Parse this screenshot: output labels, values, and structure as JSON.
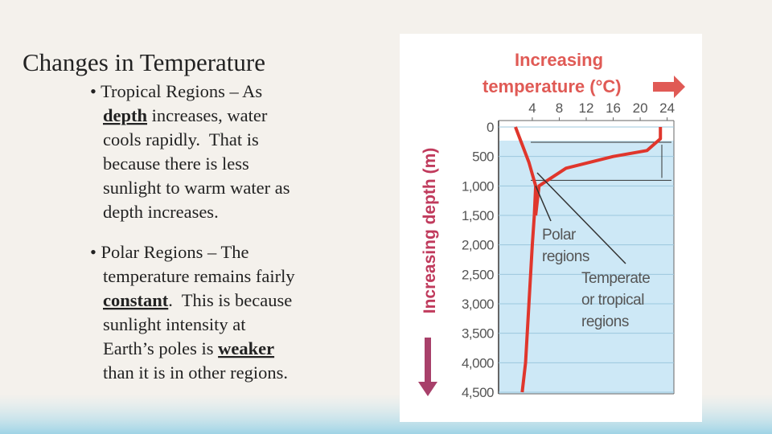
{
  "title": "Changes in Temperature",
  "bullets": [
    {
      "lines": [
        [
          {
            "text": "• Tropical Regions – As"
          }
        ],
        [
          {
            "text": "depth",
            "underline": true,
            "bold": true
          },
          {
            "text": " increases, water"
          }
        ],
        [
          {
            "text": "cools rapidly.  That is"
          }
        ],
        [
          {
            "text": "because there is less"
          }
        ],
        [
          {
            "text": "sunlight to warm water as"
          }
        ],
        [
          {
            "text": "depth increases."
          }
        ]
      ]
    },
    {
      "lines": [
        [
          {
            "text": "• Polar Regions – The"
          }
        ],
        [
          {
            "text": "temperature remains fairly"
          }
        ],
        [
          {
            "text": "constant",
            "underline": true,
            "bold": true
          },
          {
            "text": ".  This is because"
          }
        ],
        [
          {
            "text": "sunlight intensity at"
          }
        ],
        [
          {
            "text": "Earth’s poles is "
          },
          {
            "text": "weaker",
            "underline": true,
            "bold": true
          }
        ],
        [
          {
            "text": "than it is in other regions."
          }
        ]
      ]
    }
  ],
  "figure": {
    "type": "line",
    "x_label": [
      "Increasing",
      "temperature (°C)"
    ],
    "y_label": "Increasing depth (m)",
    "xlim": [
      -1,
      25
    ],
    "xticks": [
      4,
      8,
      12,
      16,
      20,
      24
    ],
    "ylim": [
      0,
      4500
    ],
    "yticks": [
      0,
      500,
      {
        "value": 1000,
        "label": "1,000"
      },
      {
        "value": 1500,
        "label": "1,500"
      },
      {
        "value": 2000,
        "label": "2,000"
      },
      {
        "value": 2500,
        "label": "2,500"
      },
      {
        "value": 3000,
        "label": "3,000"
      },
      {
        "value": 3500,
        "label": "3,500"
      },
      {
        "value": 4000,
        "label": "4,000"
      },
      {
        "value": 4500,
        "label": "4,500"
      }
    ],
    "color": "#e0362c",
    "series": [
      {
        "name": [
          "Polar",
          "regions"
        ],
        "x": [
          1.5,
          3.5,
          4.5,
          4.3,
          4,
          3.5,
          3,
          2.5
        ],
        "values": [
          0,
          600,
          1000,
          1500,
          2000,
          3000,
          4000,
          4500
        ]
      },
      {
        "name": [
          "Temperate",
          "or tropical",
          "regions"
        ],
        "x": [
          23,
          23,
          21,
          16,
          9,
          5,
          4.5
        ],
        "values": [
          0,
          200,
          400,
          500,
          700,
          1000,
          1500
        ]
      }
    ]
  }
}
